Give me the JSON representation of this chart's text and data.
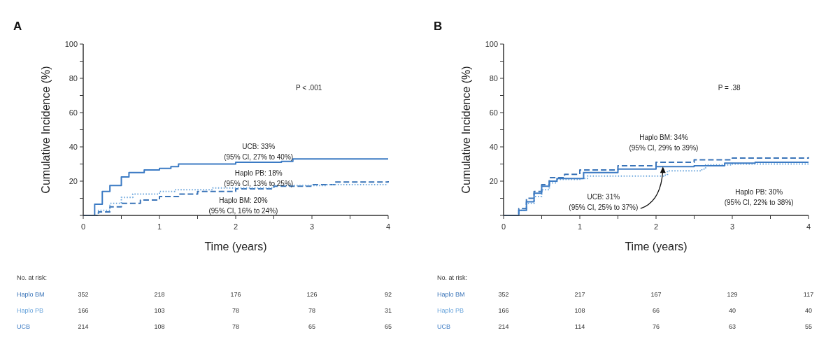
{
  "chart_data": [
    {
      "type": "step",
      "title": "A",
      "xlabel": "Time (years)",
      "ylabel": "Cumulative Incidence (%)",
      "xlim": [
        0,
        4
      ],
      "xticks": [
        0,
        {
          "value": 0.5,
          "label": null
        },
        1,
        {
          "value": 1.5,
          "label": null
        },
        2,
        {
          "value": 2.5,
          "label": null
        },
        3,
        {
          "value": 3.5,
          "label": null
        },
        4
      ],
      "ylim": [
        0,
        100
      ],
      "yticks": [
        {
          "value": 0,
          "label": null
        },
        {
          "value": 10,
          "label": null
        },
        20,
        {
          "value": 30,
          "label": null
        },
        40,
        {
          "value": 50,
          "label": null
        },
        60,
        {
          "value": 70,
          "label": null
        },
        80,
        {
          "value": 90,
          "label": null
        },
        100
      ],
      "grid": false,
      "series": [
        {
          "name": "Haplo BM",
          "color": "#3a74b8",
          "line_style": "dashed",
          "x": [
            0,
            0.1,
            0.2,
            0.35,
            0.5,
            0.75,
            1,
            1.25,
            1.5,
            2,
            2.5,
            3,
            3.3,
            4
          ],
          "values": [
            0,
            0,
            2,
            5,
            7,
            9,
            11,
            12.5,
            14,
            15.5,
            17,
            18,
            19.5,
            20
          ]
        },
        {
          "name": "Haplo PB",
          "color": "#6aa5dc",
          "line_style": "dotted",
          "x": [
            0,
            0.1,
            0.2,
            0.35,
            0.5,
            0.65,
            1,
            1.2,
            1.7,
            2.5,
            3.2,
            4
          ],
          "values": [
            0,
            0,
            3,
            7,
            10.5,
            12.5,
            14,
            15,
            16,
            17.5,
            18,
            18
          ]
        },
        {
          "name": "UCB",
          "color": "#3c7bc4",
          "line_style": "solid",
          "x": [
            0,
            0.1,
            0.15,
            0.25,
            0.35,
            0.5,
            0.6,
            0.8,
            1,
            1.15,
            1.25,
            2,
            2.6,
            2.75,
            4
          ],
          "values": [
            0,
            0,
            6.5,
            14,
            17.5,
            22.5,
            25,
            26.5,
            27.5,
            28.5,
            30,
            31,
            31.5,
            33,
            33
          ]
        }
      ],
      "annotations": [
        "P < .001",
        "No. at risk:",
        "352 218 176 126 92",
        "166 103 78 78 31",
        "214 108 78 65 65",
        "UCB: 33%\n(95% CI, 27% to 40%)",
        "Haplo PB: 18%\n(95% CI, 13% to 25%)",
        "Haplo BM: 20%\n(95% CI, 16% to 24%)"
      ]
    },
    {
      "type": "step",
      "title": "B",
      "xlabel": "Time (years)",
      "ylabel": "Cumulative Incidence (%)",
      "xlim": [
        0,
        4
      ],
      "xticks": [
        0,
        {
          "value": 0.5,
          "label": null
        },
        1,
        {
          "value": 1.5,
          "label": null
        },
        2,
        {
          "value": 2.5,
          "label": null
        },
        3,
        {
          "value": 3.5,
          "label": null
        },
        4
      ],
      "ylim": [
        0,
        100
      ],
      "yticks": [
        {
          "value": 0,
          "label": null
        },
        {
          "value": 10,
          "label": null
        },
        20,
        {
          "value": 30,
          "label": null
        },
        40,
        {
          "value": 50,
          "label": null
        },
        60,
        {
          "value": 70,
          "label": null
        },
        80,
        {
          "value": 90,
          "label": null
        },
        100
      ],
      "grid": false,
      "series": [
        {
          "name": "Haplo BM",
          "color": "#3a74b8",
          "line_style": "dashed",
          "x": [
            0,
            0.1,
            0.2,
            0.3,
            0.4,
            0.5,
            0.6,
            0.8,
            1,
            1.5,
            2,
            2.5,
            3,
            4
          ],
          "values": [
            0,
            0,
            4,
            10,
            14,
            18,
            22,
            24,
            26.5,
            29,
            31,
            32.5,
            33.5,
            34
          ]
        },
        {
          "name": "Haplo PB",
          "color": "#6aa5dc",
          "line_style": "dotted",
          "x": [
            0,
            0.1,
            0.2,
            0.3,
            0.4,
            0.5,
            0.6,
            0.7,
            1,
            1.1,
            2.1,
            2.15,
            2.6,
            2.65,
            3,
            4
          ],
          "values": [
            0,
            0,
            3,
            7,
            11,
            15,
            19,
            21,
            21.5,
            23,
            23.5,
            26,
            27,
            29.5,
            30,
            30
          ]
        },
        {
          "name": "UCB",
          "color": "#3c7bc4",
          "line_style": "solid",
          "x": [
            0,
            0.1,
            0.2,
            0.3,
            0.4,
            0.5,
            0.6,
            0.7,
            1,
            1.05,
            1.5,
            2,
            2.5,
            2.9,
            3.3,
            4
          ],
          "values": [
            0,
            0,
            3,
            8,
            13,
            17,
            20,
            21.5,
            21.5,
            25,
            27,
            28.5,
            29,
            30.5,
            31,
            31
          ]
        }
      ],
      "annotations": [
        "P = .38",
        "No. at risk:",
        "352 217 167 129 117",
        "166 108 66 40 40",
        "214 114 76 63 55",
        "Haplo BM: 34%\n(95% CI, 29% to 39%)",
        {
          "text": "UCB: 31%\n(95% CI, 25% to 37%)",
          "x": 2.09,
          "y": 28.5
        },
        "Haplo PB: 30%\n(95% CI, 22% to 38%)"
      ]
    }
  ]
}
